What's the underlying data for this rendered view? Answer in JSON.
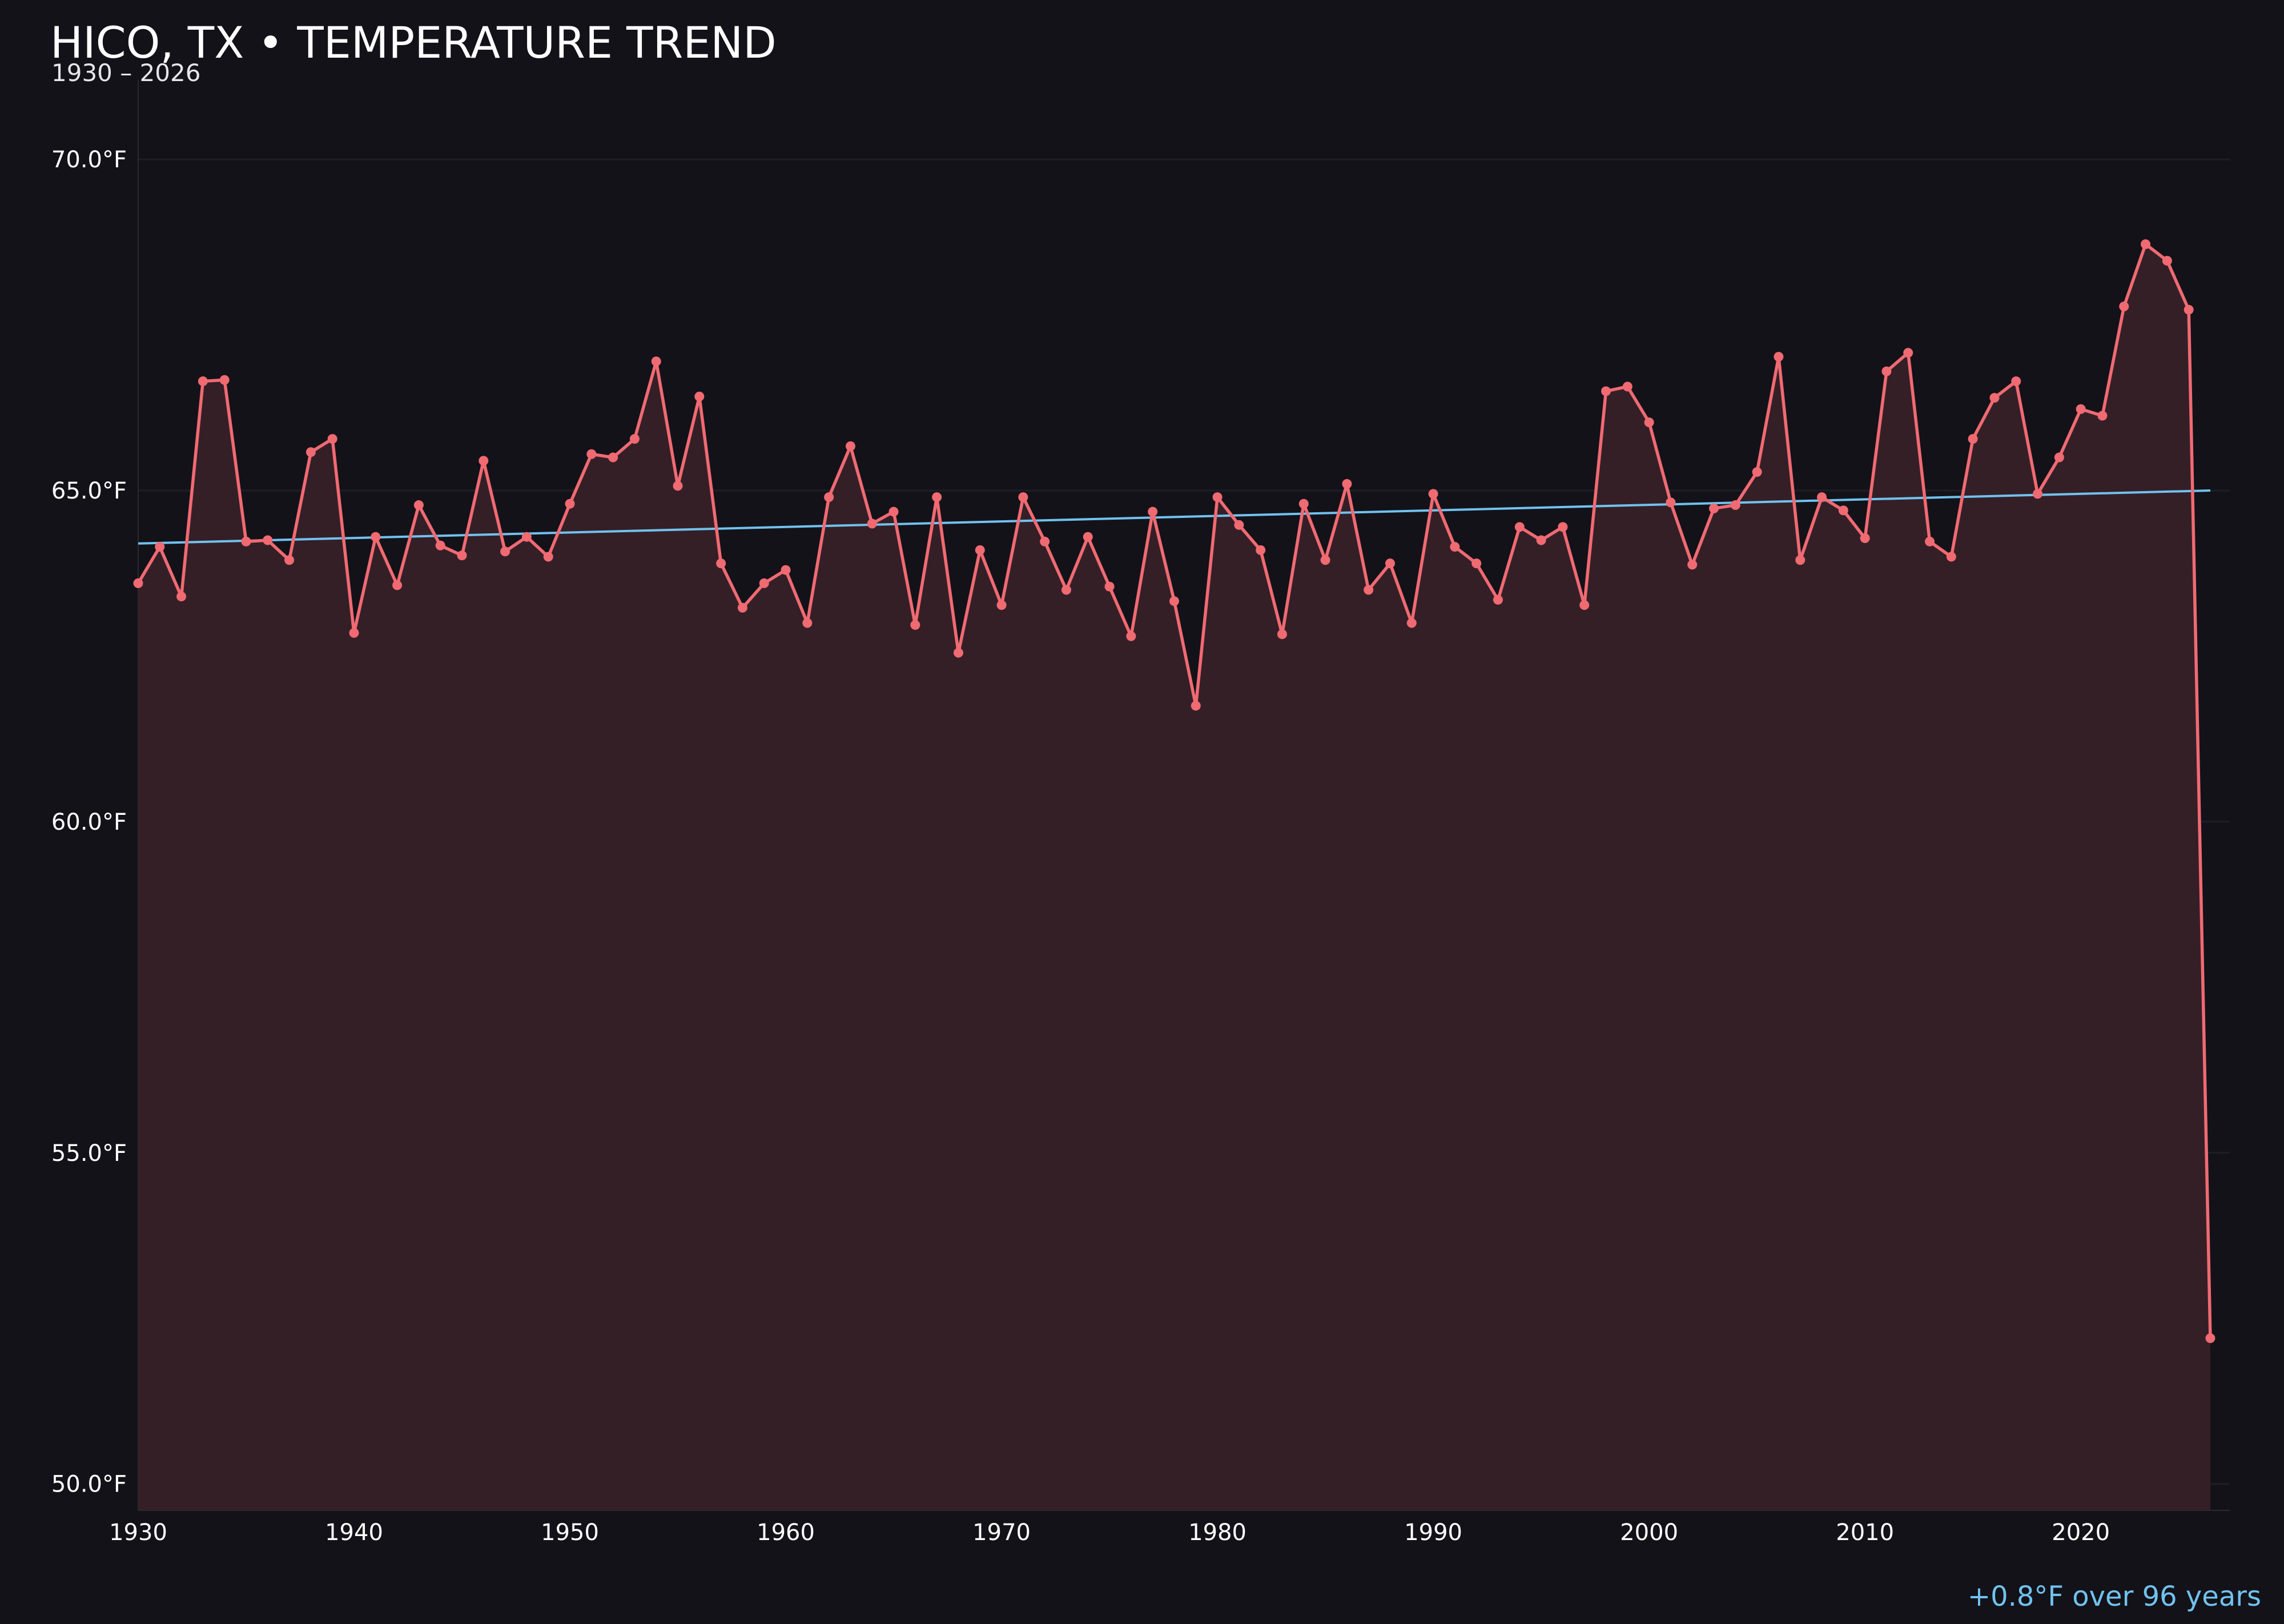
{
  "colors": {
    "background": "#131219",
    "grid": "#1f1e26",
    "series": "#f06a72",
    "area": "#351f27",
    "trend": "#71c2ee",
    "text": "#ffffff"
  },
  "chart_data": {
    "type": "area",
    "title": "HICO, TX • TEMPERATURE TREND",
    "subtitle": "1930 – 2026",
    "xlabel": "",
    "ylabel": "",
    "xlim": [
      1930,
      2026.9
    ],
    "ylim": [
      49.6,
      71.2
    ],
    "x_ticks": [
      1930,
      1940,
      1950,
      1960,
      1970,
      1980,
      1990,
      2000,
      2010,
      2020
    ],
    "y_ticks": [
      50,
      55,
      60,
      65,
      70
    ],
    "y_tick_labels": [
      "50.0°F",
      "55.0°F",
      "60.0°F",
      "65.0°F",
      "70.0°F"
    ],
    "grid": "horizontal",
    "legend": "none",
    "series": [
      {
        "x": [
          1930,
          1931,
          1932,
          1933,
          1934,
          1935,
          1936,
          1937,
          1938,
          1939,
          1940,
          1941,
          1942,
          1943,
          1944,
          1945,
          1946,
          1947,
          1948,
          1949,
          1950,
          1951,
          1952,
          1953,
          1954,
          1955,
          1956,
          1957,
          1958,
          1959,
          1960,
          1961,
          1962,
          1963,
          1964,
          1965,
          1966,
          1967,
          1968,
          1969,
          1970,
          1971,
          1972,
          1973,
          1974,
          1975,
          1976,
          1977,
          1978,
          1979,
          1980,
          1981,
          1982,
          1983,
          1984,
          1985,
          1986,
          1987,
          1988,
          1989,
          1990,
          1991,
          1992,
          1993,
          1994,
          1995,
          1996,
          1997,
          1998,
          1999,
          2000,
          2001,
          2002,
          2003,
          2004,
          2005,
          2006,
          2007,
          2008,
          2009,
          2010,
          2011,
          2012,
          2013,
          2014,
          2015,
          2016,
          2017,
          2018,
          2019,
          2020,
          2021,
          2022,
          2023,
          2024,
          2025,
          2026
        ],
        "values": [
          63.6,
          64.15,
          63.4,
          66.65,
          66.67,
          64.23,
          64.25,
          63.95,
          65.58,
          65.78,
          62.85,
          64.3,
          63.57,
          64.78,
          64.17,
          64.02,
          65.45,
          64.08,
          64.3,
          64.0,
          64.8,
          65.55,
          65.5,
          65.78,
          66.95,
          65.07,
          66.42,
          63.9,
          63.23,
          63.6,
          63.8,
          63.0,
          64.9,
          65.67,
          64.5,
          64.68,
          62.97,
          64.9,
          62.55,
          64.1,
          63.27,
          64.9,
          64.23,
          63.5,
          64.3,
          63.55,
          62.8,
          64.68,
          63.33,
          61.75,
          64.9,
          64.48,
          64.1,
          62.83,
          64.8,
          63.95,
          65.1,
          63.5,
          63.9,
          63.0,
          64.95,
          64.15,
          63.9,
          63.35,
          64.45,
          64.25,
          64.45,
          63.27,
          66.5,
          66.57,
          66.03,
          64.82,
          63.88,
          64.73,
          64.78,
          65.28,
          67.02,
          63.95,
          64.9,
          64.7,
          64.28,
          66.8,
          67.08,
          64.23,
          64.0,
          65.78,
          66.4,
          66.65,
          64.95,
          65.5,
          66.23,
          66.13,
          67.78,
          68.72,
          68.47,
          67.73,
          52.2
        ]
      }
    ],
    "trendline": {
      "x": [
        1930,
        2026
      ],
      "values": [
        64.2,
        65.0
      ]
    },
    "annotation": "+0.8°F over 96 years"
  }
}
